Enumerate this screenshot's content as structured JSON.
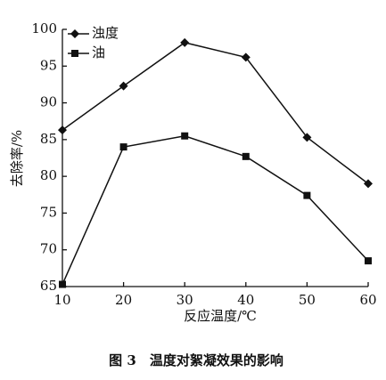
{
  "chart_data": {
    "type": "line",
    "caption": "图 3　温度对絮凝效果的影响",
    "x_label": "反应温度/℃",
    "y_label": "去除率/%",
    "x": [
      10,
      20,
      30,
      40,
      50,
      60
    ],
    "xlim": [
      10,
      60
    ],
    "xticks": [
      10,
      20,
      30,
      40,
      50,
      60
    ],
    "ylim": [
      65,
      100
    ],
    "yticks": [
      65,
      70,
      75,
      80,
      85,
      90,
      95,
      100
    ],
    "series": [
      {
        "name": "浊度",
        "color": "#111111",
        "marker": "diamond",
        "values": [
          86.3,
          92.3,
          98.2,
          96.2,
          85.3,
          79.0
        ]
      },
      {
        "name": "油",
        "color": "#111111",
        "marker": "square",
        "values": [
          65.3,
          84.0,
          85.5,
          82.7,
          77.4,
          68.5
        ]
      }
    ],
    "legend": "top-left"
  }
}
